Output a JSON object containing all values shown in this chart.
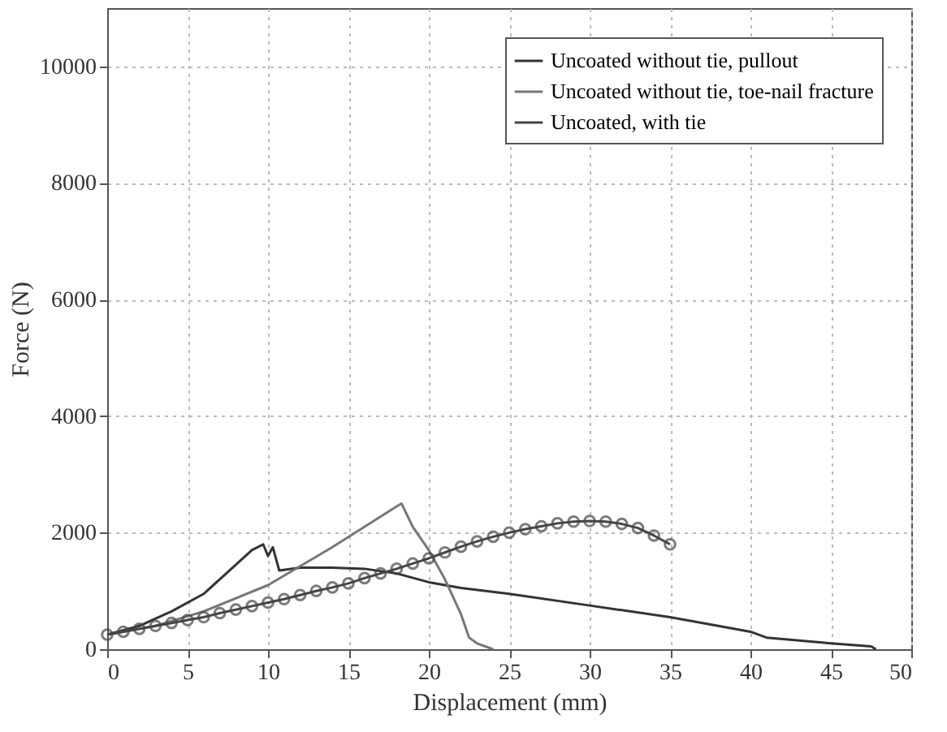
{
  "chart_data": {
    "type": "line",
    "xlabel": "Displacement (mm)",
    "ylabel": "Force (N)",
    "xlim": [
      0,
      50
    ],
    "ylim": [
      0,
      11000
    ],
    "xticks": [
      0,
      5,
      10,
      15,
      20,
      25,
      30,
      35,
      40,
      45,
      50
    ],
    "yticks": [
      0,
      2000,
      4000,
      6000,
      8000,
      10000
    ],
    "grid": true,
    "legend": "top right",
    "line_style": "solid",
    "series": [
      {
        "name": "Uncoated without tie, pullout",
        "color": "#333333",
        "marker": "none",
        "x": [
          0,
          2,
          4,
          6,
          8,
          9,
          9.7,
          10,
          10.3,
          10.7,
          12,
          14,
          16,
          18,
          20,
          22,
          25,
          30,
          35,
          38,
          40,
          41,
          45,
          47.5,
          47.8
        ],
        "values": [
          250,
          400,
          650,
          950,
          1450,
          1700,
          1800,
          1600,
          1750,
          1350,
          1400,
          1400,
          1380,
          1300,
          1150,
          1050,
          950,
          750,
          550,
          400,
          300,
          200,
          100,
          50,
          0
        ]
      },
      {
        "name": "Uncoated without tie, toe-nail fracture",
        "color": "#777777",
        "marker": "none",
        "x": [
          0,
          3,
          6,
          10,
          14,
          18,
          18.3,
          19,
          20,
          21,
          22,
          22.5,
          23,
          24
        ],
        "values": [
          250,
          400,
          650,
          1100,
          1750,
          2450,
          2500,
          2100,
          1700,
          1200,
          600,
          200,
          100,
          0
        ]
      },
      {
        "name": "Uncoated, with tie",
        "color": "#444444",
        "marker": "circle",
        "x": [
          0,
          1,
          2,
          3,
          4,
          5,
          6,
          7,
          8,
          9,
          10,
          11,
          12,
          13,
          14,
          15,
          16,
          17,
          18,
          19,
          20,
          21,
          22,
          23,
          24,
          25,
          26,
          27,
          28,
          29,
          30,
          31,
          32,
          33,
          34,
          35
        ],
        "values": [
          250,
          300,
          350,
          400,
          450,
          500,
          550,
          620,
          680,
          740,
          800,
          860,
          930,
          1000,
          1060,
          1130,
          1220,
          1300,
          1380,
          1470,
          1560,
          1660,
          1760,
          1850,
          1930,
          2000,
          2060,
          2110,
          2160,
          2190,
          2200,
          2190,
          2150,
          2080,
          1950,
          1800
        ]
      }
    ]
  }
}
